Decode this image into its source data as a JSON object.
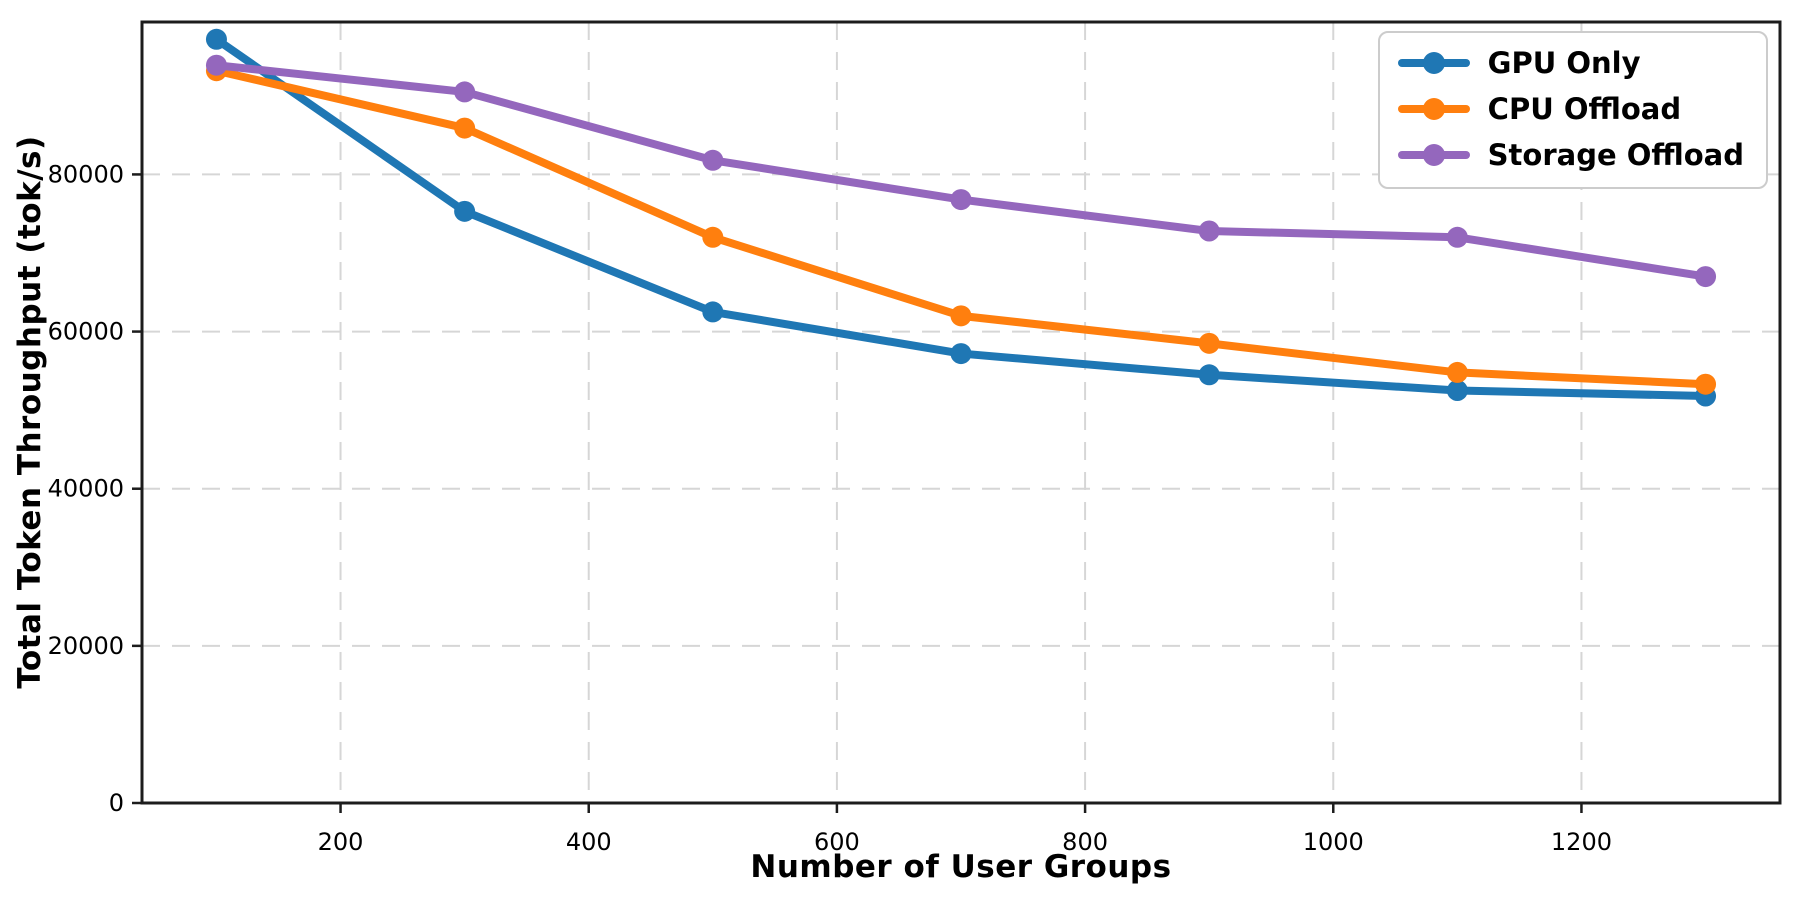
{
  "figure": {
    "background": "#ffffff"
  },
  "chart_data": {
    "type": "line",
    "title": "",
    "xlabel": "Number of User Groups",
    "ylabel": "Total Token Throughput (tok/s)",
    "x": [
      100,
      300,
      500,
      700,
      900,
      1100,
      1300
    ],
    "series": [
      {
        "name": "GPU Only",
        "color": "#1f77b4",
        "values": [
          97200,
          75300,
          62500,
          57200,
          54500,
          52500,
          51800
        ]
      },
      {
        "name": "CPU Offload",
        "color": "#ff7f0e",
        "values": [
          93200,
          85900,
          72000,
          62000,
          58500,
          54800,
          53300
        ]
      },
      {
        "name": "Storage Offload",
        "color": "#9467bd",
        "values": [
          93900,
          90500,
          81800,
          76800,
          72800,
          72000,
          67000
        ]
      }
    ],
    "xticks": [
      200,
      400,
      600,
      800,
      1000,
      1200
    ],
    "yticks": [
      0,
      20000,
      40000,
      60000,
      80000
    ],
    "xlim": [
      40,
      1360
    ],
    "ylim": [
      0,
      99400
    ],
    "grid": true,
    "grid_style": "dashed",
    "legend_position": "upper right",
    "marker": "circle"
  },
  "legend": {
    "items": [
      {
        "label": "GPU Only",
        "color": "#1f77b4"
      },
      {
        "label": "CPU Offload",
        "color": "#ff7f0e"
      },
      {
        "label": "Storage Offload",
        "color": "#9467bd"
      }
    ]
  },
  "style_colors": {
    "grid": "#d6d6d6",
    "spine": "#1c1c1c",
    "tick": "#1c1c1c",
    "text": "#000000"
  }
}
